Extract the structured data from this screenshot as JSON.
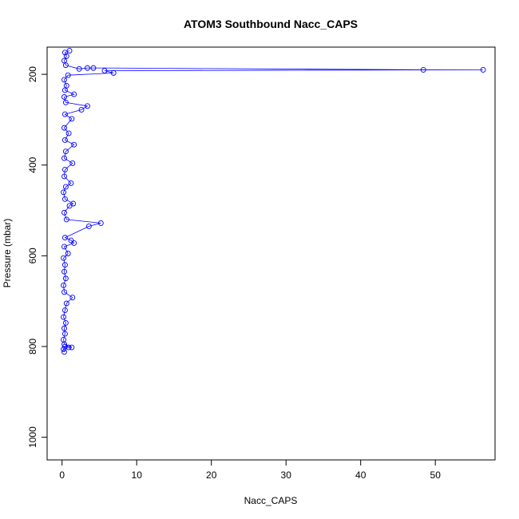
{
  "chart_data": {
    "type": "line",
    "title": "ATOM3 Southbound Nacc_CAPS",
    "xlabel": "Nacc_CAPS",
    "ylabel": "Pressure (mbar)",
    "xlim": [
      -2,
      58
    ],
    "ylim": [
      1050,
      140
    ],
    "y_reversed": true,
    "x_ticks": [
      0,
      10,
      20,
      30,
      40,
      50
    ],
    "y_ticks": [
      200,
      400,
      600,
      800,
      1000
    ],
    "grid": false,
    "series_color": "#0000ff",
    "marker": "open-circle",
    "series": [
      {
        "points": [
          [
            0.3,
            812
          ],
          [
            0.2,
            806
          ],
          [
            0.4,
            800
          ],
          [
            0.9,
            802
          ],
          [
            1.3,
            802
          ],
          [
            0.3,
            795
          ],
          [
            0.2,
            785
          ],
          [
            0.4,
            772
          ],
          [
            0.3,
            760
          ],
          [
            0.5,
            748
          ],
          [
            0.2,
            735
          ],
          [
            0.4,
            720
          ],
          [
            0.6,
            705
          ],
          [
            1.4,
            692
          ],
          [
            0.3,
            680
          ],
          [
            0.2,
            665
          ],
          [
            0.5,
            650
          ],
          [
            0.3,
            635
          ],
          [
            0.4,
            620
          ],
          [
            0.2,
            605
          ],
          [
            0.8,
            595
          ],
          [
            0.3,
            580
          ],
          [
            1.6,
            572
          ],
          [
            1.2,
            566
          ],
          [
            0.4,
            560
          ],
          [
            3.6,
            535
          ],
          [
            5.2,
            528
          ],
          [
            0.6,
            520
          ],
          [
            0.3,
            505
          ],
          [
            1.0,
            490
          ],
          [
            1.5,
            485
          ],
          [
            0.4,
            475
          ],
          [
            0.2,
            460
          ],
          [
            0.5,
            448
          ],
          [
            1.2,
            440
          ],
          [
            0.3,
            425
          ],
          [
            0.4,
            410
          ],
          [
            1.4,
            396
          ],
          [
            0.3,
            385
          ],
          [
            0.5,
            370
          ],
          [
            1.6,
            355
          ],
          [
            0.4,
            345
          ],
          [
            0.9,
            330
          ],
          [
            0.3,
            318
          ],
          [
            1.3,
            298
          ],
          [
            0.4,
            288
          ],
          [
            2.6,
            278
          ],
          [
            3.4,
            270
          ],
          [
            0.5,
            262
          ],
          [
            0.3,
            250
          ],
          [
            1.6,
            244
          ],
          [
            0.4,
            235
          ],
          [
            0.6,
            225
          ],
          [
            0.3,
            212
          ],
          [
            0.8,
            202
          ],
          [
            6.9,
            197
          ],
          [
            5.7,
            192
          ],
          [
            56.4,
            190
          ],
          [
            48.4,
            190
          ],
          [
            4.2,
            186
          ],
          [
            3.4,
            186
          ],
          [
            2.3,
            188
          ],
          [
            0.5,
            180
          ],
          [
            0.3,
            170
          ],
          [
            0.6,
            160
          ],
          [
            0.4,
            152
          ],
          [
            1.0,
            148
          ]
        ]
      }
    ]
  }
}
